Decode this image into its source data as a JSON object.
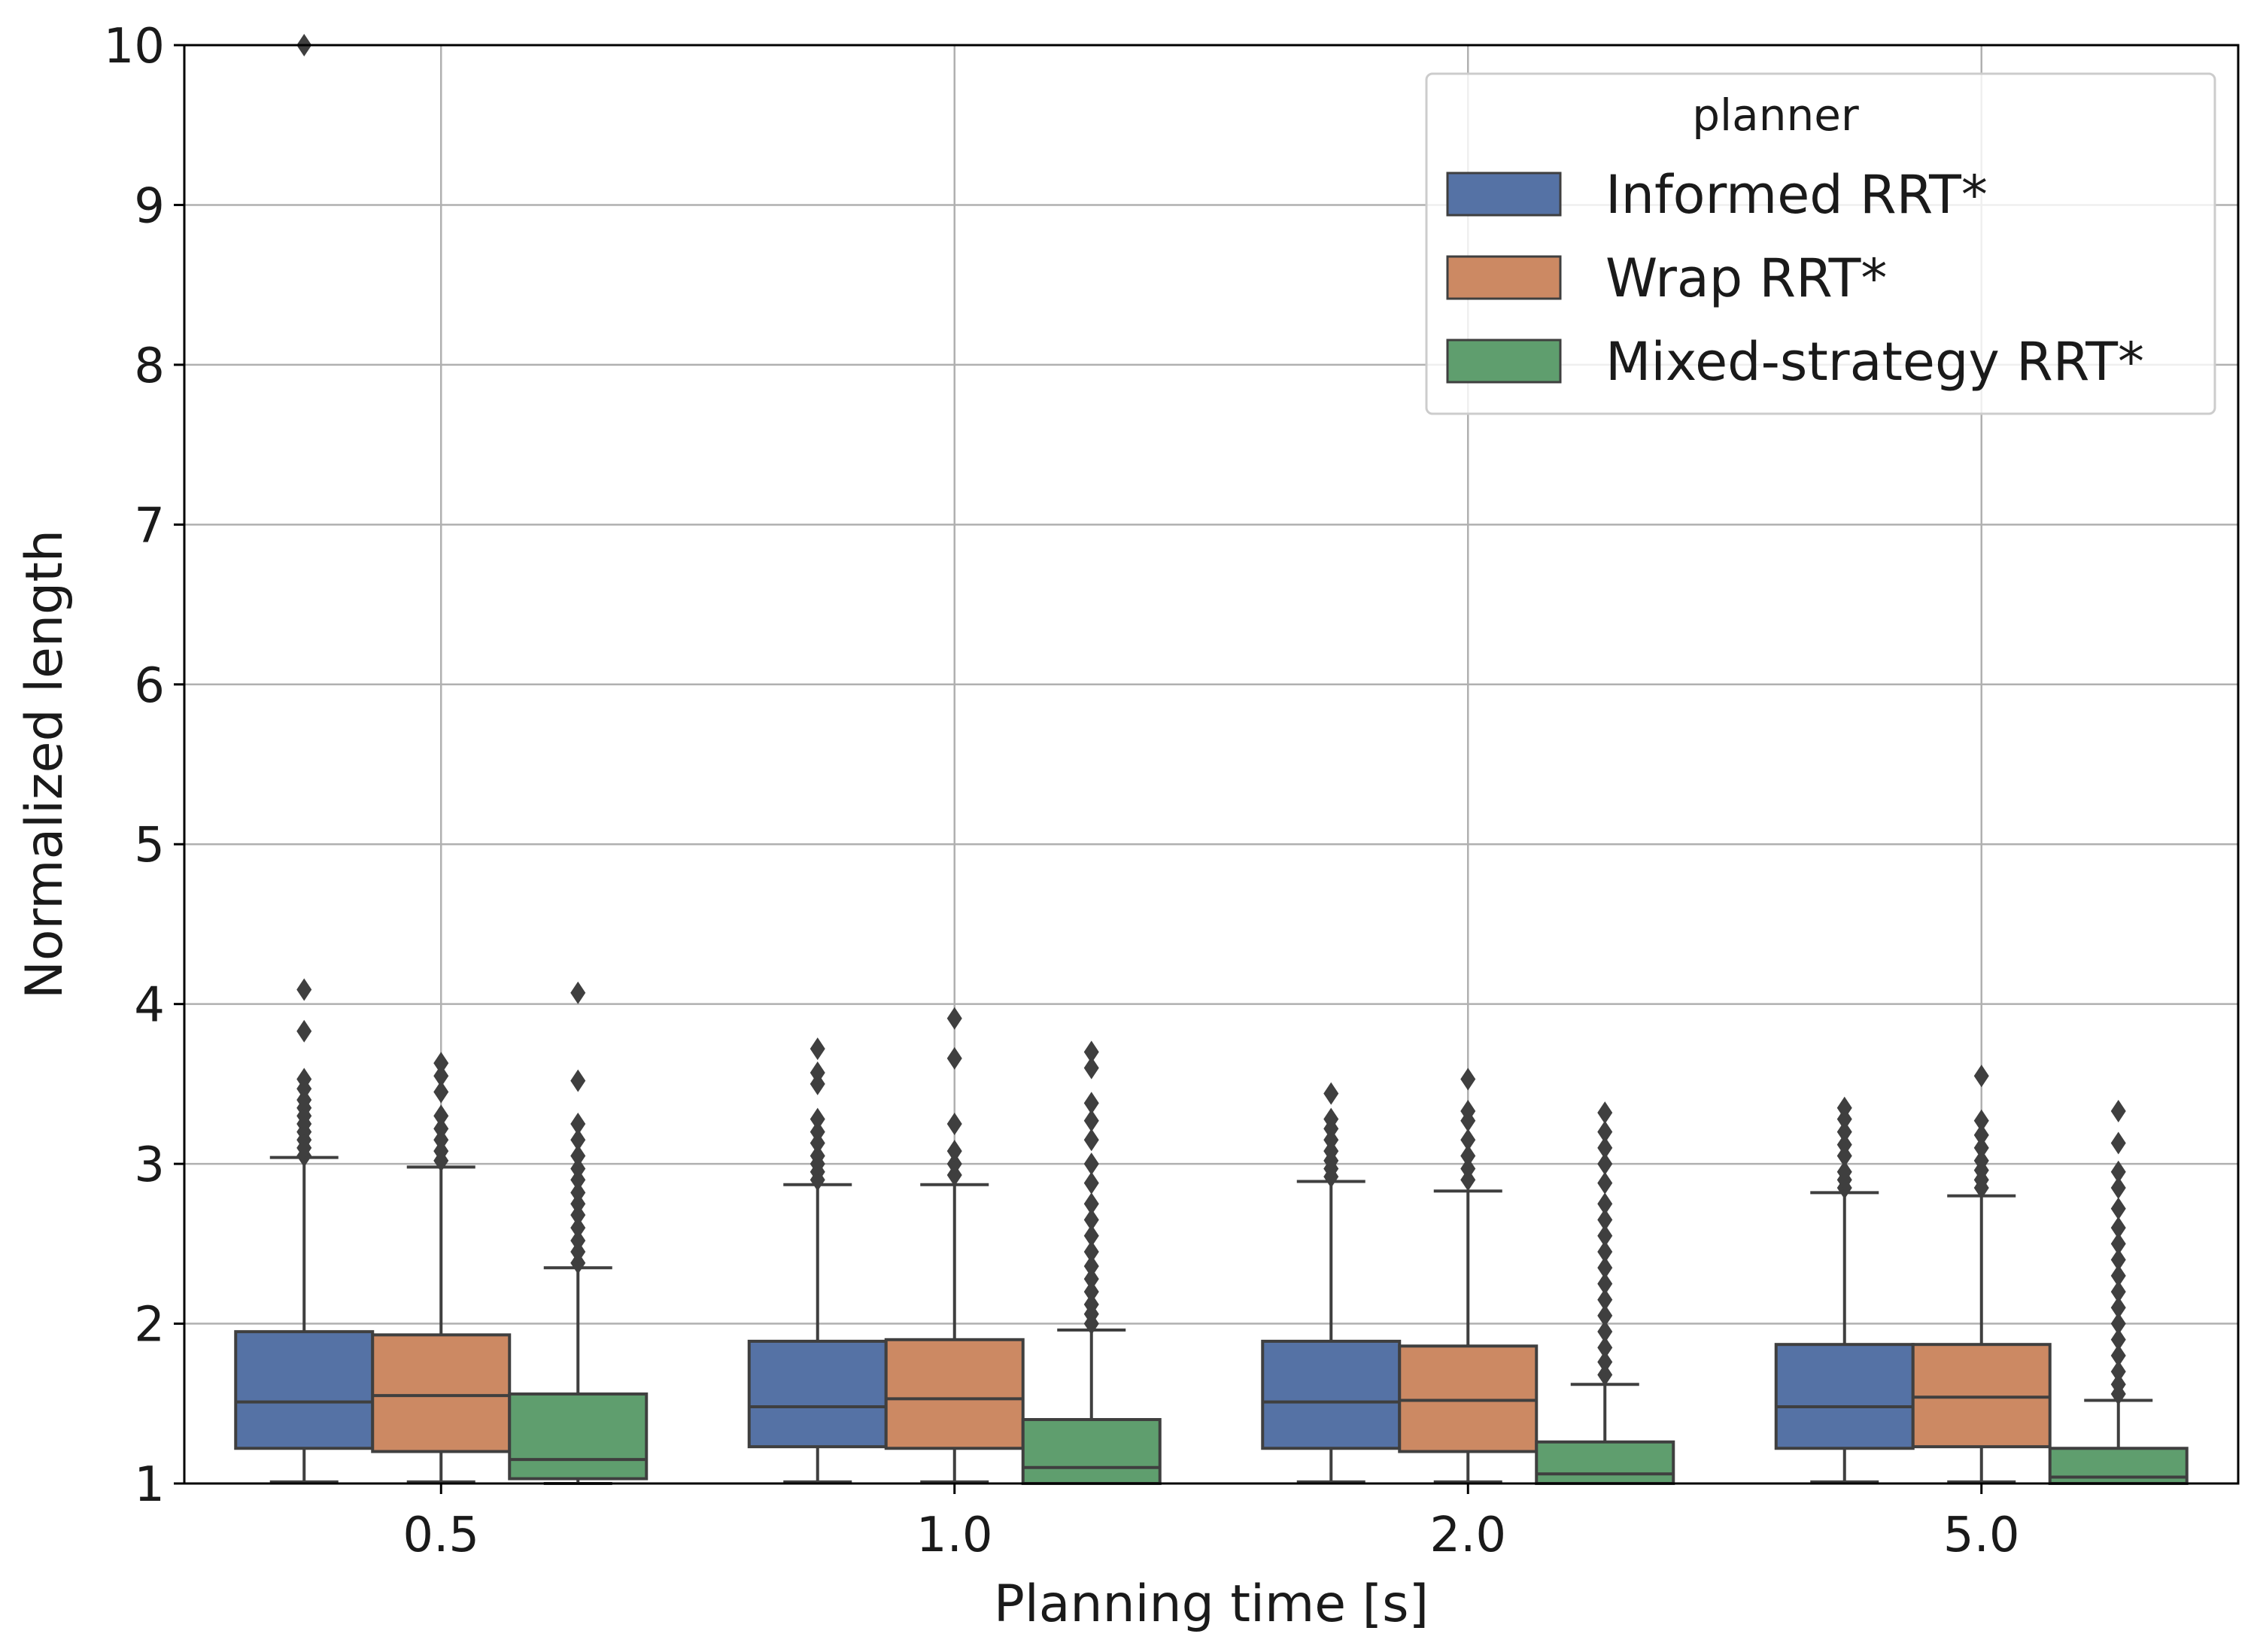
{
  "chart_data": {
    "type": "box",
    "xlabel": "Planning time [s]",
    "ylabel": "Normalized length",
    "ylim": [
      1,
      10
    ],
    "yticks": [
      "1",
      "2",
      "3",
      "4",
      "5",
      "6",
      "7",
      "8",
      "9",
      "10"
    ],
    "categories": [
      "0.5",
      "1.0",
      "2.0",
      "5.0"
    ],
    "grid": true,
    "legend": {
      "title": "planner",
      "position": "top-right"
    },
    "series": [
      {
        "name": "Informed RRT*",
        "color": "#5572a5",
        "boxes": [
          {
            "whisker_low": 1.01,
            "q1": 1.22,
            "median": 1.51,
            "q3": 1.95,
            "whisker_high": 3.04,
            "outliers": [
              3.05,
              3.1,
              3.15,
              3.2,
              3.25,
              3.3,
              3.35,
              3.4,
              3.47,
              3.53,
              3.83,
              4.09,
              10.0
            ]
          },
          {
            "whisker_low": 1.01,
            "q1": 1.23,
            "median": 1.48,
            "q3": 1.89,
            "whisker_high": 2.87,
            "outliers": [
              2.9,
              2.95,
              3.0,
              3.05,
              3.13,
              3.2,
              3.28,
              3.5,
              3.57,
              3.72
            ]
          },
          {
            "whisker_low": 1.01,
            "q1": 1.22,
            "median": 1.51,
            "q3": 1.89,
            "whisker_high": 2.89,
            "outliers": [
              2.92,
              2.97,
              3.02,
              3.08,
              3.15,
              3.22,
              3.28,
              3.44
            ]
          },
          {
            "whisker_low": 1.01,
            "q1": 1.22,
            "median": 1.48,
            "q3": 1.87,
            "whisker_high": 2.82,
            "outliers": [
              2.85,
              2.9,
              2.95,
              3.05,
              3.12,
              3.2,
              3.28,
              3.35
            ]
          }
        ]
      },
      {
        "name": "Wrap RRT*",
        "color": "#cc8963",
        "boxes": [
          {
            "whisker_low": 1.01,
            "q1": 1.2,
            "median": 1.55,
            "q3": 1.93,
            "whisker_high": 2.98,
            "outliers": [
              3.02,
              3.08,
              3.15,
              3.22,
              3.3,
              3.45,
              3.55,
              3.63
            ]
          },
          {
            "whisker_low": 1.01,
            "q1": 1.22,
            "median": 1.53,
            "q3": 1.9,
            "whisker_high": 2.87,
            "outliers": [
              2.93,
              3.0,
              3.08,
              3.25,
              3.66,
              3.91
            ]
          },
          {
            "whisker_low": 1.01,
            "q1": 1.2,
            "median": 1.52,
            "q3": 1.86,
            "whisker_high": 2.83,
            "outliers": [
              2.9,
              2.97,
              3.05,
              3.15,
              3.27,
              3.33,
              3.53
            ]
          },
          {
            "whisker_low": 1.01,
            "q1": 1.23,
            "median": 1.54,
            "q3": 1.87,
            "whisker_high": 2.8,
            "outliers": [
              2.85,
              2.9,
              2.96,
              3.02,
              3.1,
              3.18,
              3.27,
              3.55
            ]
          }
        ]
      },
      {
        "name": "Mixed-strategy RRT*",
        "color": "#5f9e6e",
        "boxes": [
          {
            "whisker_low": 1.0,
            "q1": 1.03,
            "median": 1.15,
            "q3": 1.56,
            "whisker_high": 2.35,
            "outliers": [
              2.38,
              2.45,
              2.52,
              2.6,
              2.68,
              2.75,
              2.82,
              2.9,
              2.97,
              3.05,
              3.15,
              3.25,
              3.52,
              4.07
            ]
          },
          {
            "whisker_low": 1.0,
            "q1": 1.0,
            "median": 1.1,
            "q3": 1.4,
            "whisker_high": 1.96,
            "outliers": [
              2.0,
              2.06,
              2.12,
              2.2,
              2.28,
              2.36,
              2.45,
              2.55,
              2.65,
              2.75,
              2.88,
              3.0,
              3.15,
              3.27,
              3.38,
              3.6,
              3.7
            ]
          },
          {
            "whisker_low": 1.0,
            "q1": 1.0,
            "median": 1.06,
            "q3": 1.26,
            "whisker_high": 1.62,
            "outliers": [
              1.68,
              1.76,
              1.85,
              1.95,
              2.05,
              2.15,
              2.25,
              2.35,
              2.45,
              2.55,
              2.65,
              2.75,
              2.88,
              3.0,
              3.1,
              3.2,
              3.32
            ]
          },
          {
            "whisker_low": 1.0,
            "q1": 1.0,
            "median": 1.04,
            "q3": 1.22,
            "whisker_high": 1.52,
            "outliers": [
              1.56,
              1.62,
              1.7,
              1.8,
              1.9,
              2.0,
              2.1,
              2.2,
              2.3,
              2.4,
              2.5,
              2.6,
              2.72,
              2.85,
              2.95,
              3.13,
              3.33
            ]
          }
        ]
      }
    ]
  }
}
